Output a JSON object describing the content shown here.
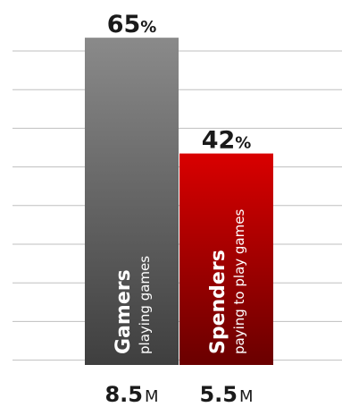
{
  "chart_data": {
    "type": "bar",
    "categories": [
      "Gamers",
      "Spenders"
    ],
    "descriptions": [
      "playing games",
      "paying to play games"
    ],
    "values": [
      65,
      42
    ],
    "value_suffix": "%",
    "counts": [
      {
        "value": "8.5",
        "unit": "M"
      },
      {
        "value": "5.5",
        "unit": "M"
      }
    ],
    "ylim": [
      0,
      70
    ],
    "grid": true,
    "legend": "none"
  },
  "colors": {
    "gamers_top": "#8a8a8a",
    "gamers_bottom": "#3f3f3f",
    "spenders_top": "#d90000",
    "spenders_bottom": "#6a0000",
    "gridline": "#bfbfbf"
  }
}
